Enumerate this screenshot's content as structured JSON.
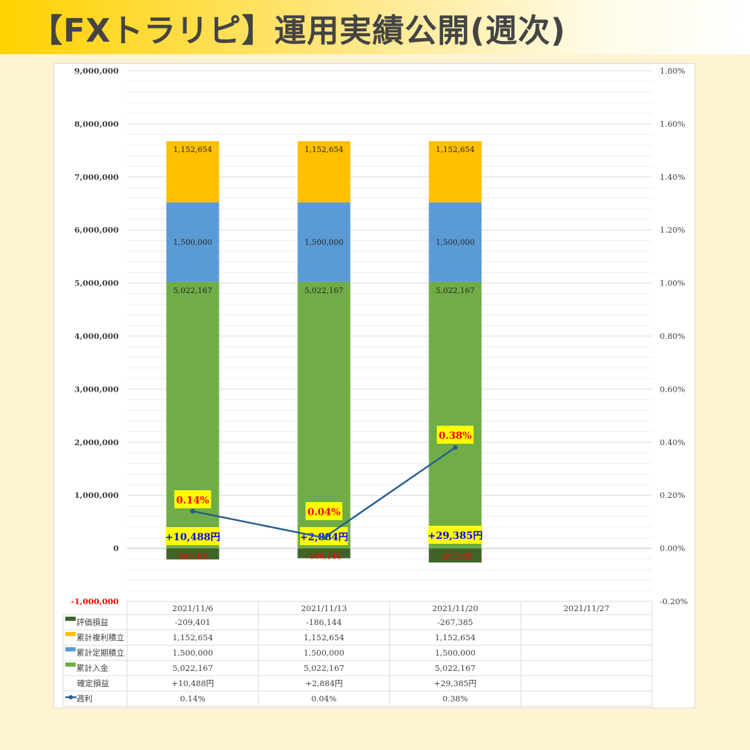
{
  "header": {
    "title": "【FXトラリピ】運用実績公開(週次)"
  },
  "colors": {
    "eval": "#3f6428",
    "compound": "#ffc000",
    "regular": "#5b9bd5",
    "deposit": "#70ad47",
    "line": "#255e91",
    "label_bg": "#ffff00",
    "label_red": "#ff0000",
    "label_blue": "#0000ff"
  },
  "chart_data": {
    "type": "bar",
    "stacked": true,
    "categories": [
      "2021/11/6",
      "2021/11/13",
      "2021/11/20",
      "2021/11/27"
    ],
    "y_left": {
      "min": -1000000,
      "max": 9000000,
      "step": 1000000,
      "ticks": [
        "-1,000,000",
        "0",
        "1,000,000",
        "2,000,000",
        "3,000,000",
        "4,000,000",
        "5,000,000",
        "6,000,000",
        "7,000,000",
        "8,000,000",
        "9,000,000"
      ]
    },
    "y_right": {
      "min": -0.2,
      "max": 1.8,
      "step": 0.2,
      "ticks": [
        "-0.20%",
        "0.00%",
        "0.20%",
        "0.40%",
        "0.60%",
        "0.80%",
        "1.00%",
        "1.20%",
        "1.40%",
        "1.60%",
        "1.80%"
      ]
    },
    "series": [
      {
        "name": "評価損益",
        "type": "bar",
        "values": [
          -209401,
          -186144,
          -267385,
          null
        ],
        "labels": [
          "-209,401",
          "-186,144",
          "-267,385",
          ""
        ]
      },
      {
        "name": "累計複利積立",
        "type": "bar",
        "values": [
          1152654,
          1152654,
          1152654,
          null
        ],
        "labels": [
          "1,152,654",
          "1,152,654",
          "1,152,654",
          ""
        ]
      },
      {
        "name": "累計定期積立",
        "type": "bar",
        "values": [
          1500000,
          1500000,
          1500000,
          null
        ],
        "labels": [
          "1,500,000",
          "1,500,000",
          "1,500,000",
          ""
        ]
      },
      {
        "name": "累計入金",
        "type": "bar",
        "values": [
          5022167,
          5022167,
          5022167,
          null
        ],
        "labels": [
          "5,022,167",
          "5,022,167",
          "5,022,167",
          ""
        ]
      },
      {
        "name": "確定損益",
        "type": "label",
        "values": [
          10488,
          2884,
          29385,
          null
        ],
        "labels": [
          "+10,488円",
          "+2,884円",
          "+29,385円",
          ""
        ]
      },
      {
        "name": "週利",
        "type": "line",
        "axis": "right",
        "values": [
          0.14,
          0.04,
          0.38,
          null
        ],
        "labels": [
          "0.14%",
          "0.04%",
          "0.38%",
          ""
        ]
      }
    ],
    "legend": "data-table-bottom"
  }
}
